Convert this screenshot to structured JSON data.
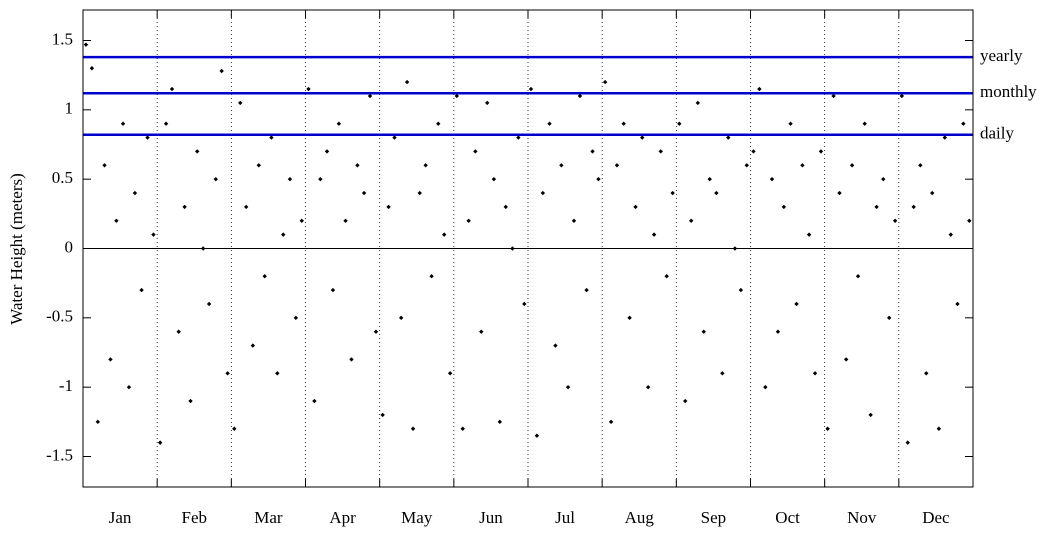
{
  "chart_data": {
    "type": "scatter",
    "y_label": "Water Height (meters)",
    "month_labels": [
      "Jan",
      "Feb",
      "Mar",
      "Apr",
      "May",
      "Jun",
      "Jul",
      "Aug",
      "Sep",
      "Oct",
      "Nov",
      "Dec"
    ],
    "xlim": [
      0,
      12
    ],
    "xticks": [
      0,
      1,
      2,
      3,
      4,
      5,
      6,
      7,
      8,
      9,
      10,
      11,
      12
    ],
    "ylim": [
      -1.72,
      1.72
    ],
    "yticks": [
      -1.5,
      -1,
      -0.5,
      0,
      0.5,
      1,
      1.5
    ],
    "x_grid": true,
    "point_color": "#000000",
    "zero_line": 0,
    "reference_lines": [
      {
        "label": "yearly",
        "value": 1.38,
        "color": "#0000cc"
      },
      {
        "label": "monthly",
        "value": 1.12,
        "color": "#0000cc"
      },
      {
        "label": "daily",
        "value": 0.82,
        "color": "#0000cc"
      }
    ],
    "x": [
      0.04,
      0.12,
      0.2,
      0.29,
      0.37,
      0.45,
      0.54,
      0.62,
      0.7,
      0.79,
      0.87,
      0.95,
      1.04,
      1.12,
      1.2,
      1.29,
      1.37,
      1.45,
      1.54,
      1.62,
      1.7,
      1.79,
      1.87,
      1.95,
      2.04,
      2.12,
      2.2,
      2.29,
      2.37,
      2.45,
      2.54,
      2.62,
      2.7,
      2.79,
      2.87,
      2.95,
      3.04,
      3.12,
      3.2,
      3.29,
      3.37,
      3.45,
      3.54,
      3.62,
      3.7,
      3.79,
      3.87,
      3.95,
      4.04,
      4.12,
      4.2,
      4.29,
      4.37,
      4.45,
      4.54,
      4.62,
      4.7,
      4.79,
      4.87,
      4.95,
      5.04,
      5.12,
      5.2,
      5.29,
      5.37,
      5.45,
      5.54,
      5.62,
      5.7,
      5.79,
      5.87,
      5.95,
      6.04,
      6.12,
      6.2,
      6.29,
      6.37,
      6.45,
      6.54,
      6.62,
      6.7,
      6.79,
      6.87,
      6.95,
      7.04,
      7.12,
      7.2,
      7.29,
      7.37,
      7.45,
      7.54,
      7.62,
      7.7,
      7.79,
      7.87,
      7.95,
      8.04,
      8.12,
      8.2,
      8.29,
      8.37,
      8.45,
      8.54,
      8.62,
      8.7,
      8.79,
      8.87,
      8.95,
      9.04,
      9.12,
      9.2,
      9.29,
      9.37,
      9.45,
      9.54,
      9.62,
      9.7,
      9.79,
      9.87,
      9.95,
      10.04,
      10.12,
      10.2,
      10.29,
      10.37,
      10.45,
      10.54,
      10.62,
      10.7,
      10.79,
      10.87,
      10.95,
      11.04,
      11.12,
      11.2,
      11.29,
      11.37,
      11.45,
      11.54,
      11.62,
      11.7,
      11.79,
      11.87,
      11.95
    ],
    "values": [
      1.47,
      1.3,
      -1.25,
      0.6,
      -0.8,
      0.2,
      0.9,
      -1.0,
      0.4,
      -0.3,
      0.8,
      0.1,
      -1.4,
      0.9,
      1.15,
      -0.6,
      0.3,
      -1.1,
      0.7,
      0.0,
      -0.4,
      0.5,
      1.28,
      -0.9,
      -1.3,
      1.05,
      0.3,
      -0.7,
      0.6,
      -0.2,
      0.8,
      -0.9,
      0.1,
      0.5,
      -0.5,
      0.2,
      1.15,
      -1.1,
      0.5,
      0.7,
      -0.3,
      0.9,
      0.2,
      -0.8,
      0.6,
      0.4,
      1.1,
      -0.6,
      -1.2,
      0.3,
      0.8,
      -0.5,
      1.2,
      -1.3,
      0.4,
      0.6,
      -0.2,
      0.9,
      0.1,
      -0.9,
      1.1,
      -1.3,
      0.2,
      0.7,
      -0.6,
      1.05,
      0.5,
      -1.25,
      0.3,
      0.0,
      0.8,
      -0.4,
      1.15,
      -1.35,
      0.4,
      0.9,
      -0.7,
      0.6,
      -1.0,
      0.2,
      1.1,
      -0.3,
      0.7,
      0.5,
      1.2,
      -1.25,
      0.6,
      0.9,
      -0.5,
      0.3,
      0.8,
      -1.0,
      0.1,
      0.7,
      -0.2,
      0.4,
      0.9,
      -1.1,
      0.2,
      1.05,
      -0.6,
      0.5,
      0.4,
      -0.9,
      0.8,
      0.0,
      -0.3,
      0.6,
      0.7,
      1.15,
      -1.0,
      0.5,
      -0.6,
      0.3,
      0.9,
      -0.4,
      0.6,
      0.1,
      -0.9,
      0.7,
      -1.3,
      1.1,
      0.4,
      -0.8,
      0.6,
      -0.2,
      0.9,
      -1.2,
      0.3,
      0.5,
      -0.5,
      0.2,
      1.1,
      -1.4,
      0.3,
      0.6,
      -0.9,
      0.4,
      -1.3,
      0.8,
      0.1,
      -0.4,
      0.9,
      0.2
    ]
  }
}
